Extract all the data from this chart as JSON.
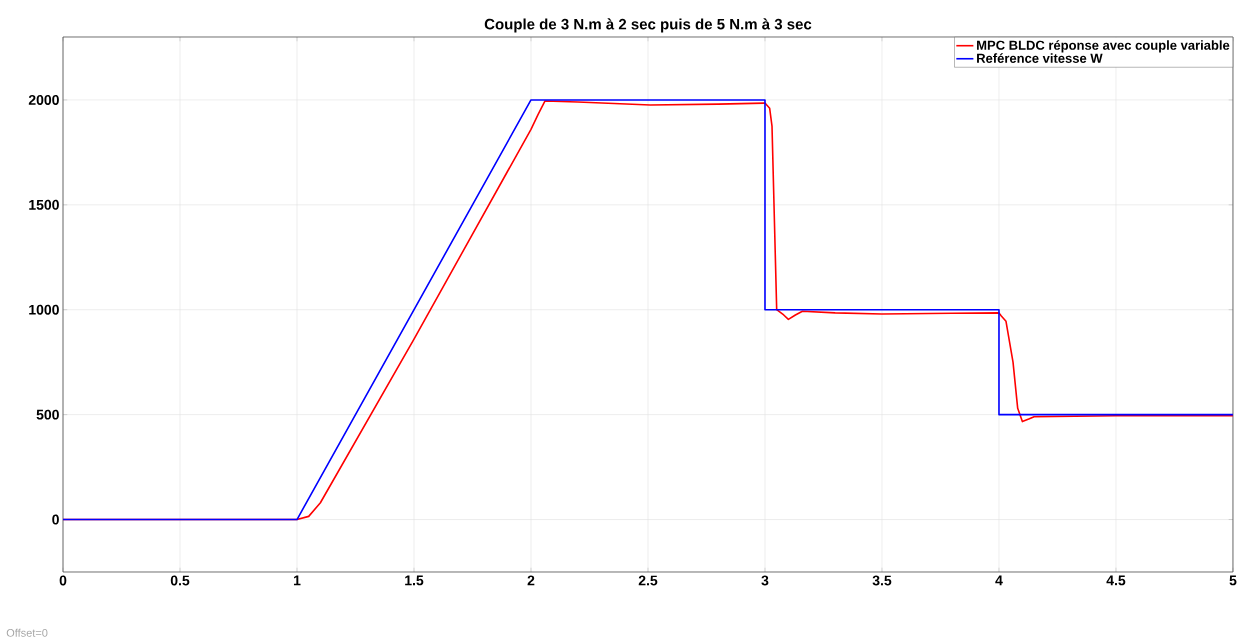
{
  "chart_data": {
    "type": "line",
    "title": "Couple de 3 N.m à 2 sec puis de 5 N.m à 3 sec",
    "xlim": [
      0,
      5
    ],
    "ylim": [
      -250,
      2300
    ],
    "xticks": [
      0,
      0.5,
      1,
      1.5,
      2,
      2.5,
      3,
      3.5,
      4,
      4.5,
      5
    ],
    "yticks": [
      0,
      500,
      1000,
      1500,
      2000
    ],
    "grid": true,
    "legend": "top right",
    "annotations": [
      "Offset=0"
    ],
    "series": [
      {
        "name": "MPC BLDC réponse avec couple variable",
        "color": "#ff0000",
        "x": [
          0,
          1.0,
          1.05,
          1.1,
          1.5,
          1.9,
          2.0,
          2.03,
          2.06,
          2.2,
          2.51,
          2.8,
          3.0,
          3.02,
          3.03,
          3.05,
          3.08,
          3.1,
          3.13,
          3.16,
          3.3,
          3.5,
          3.8,
          4.0,
          4.01,
          4.03,
          4.06,
          4.08,
          4.1,
          4.13,
          4.15,
          4.5,
          5
        ],
        "values": [
          0,
          0,
          15,
          80,
          860,
          1660,
          1860,
          1930,
          1995,
          1990,
          1976,
          1980,
          1985,
          1960,
          1875,
          1000,
          975,
          954,
          975,
          993,
          985,
          980,
          983,
          985,
          970,
          945,
          750,
          530,
          467,
          480,
          490,
          495,
          495
        ]
      },
      {
        "name": "Reférence vitesse W",
        "color": "#0000ff",
        "x": [
          0,
          1,
          2,
          3,
          3,
          4,
          4,
          5
        ],
        "values": [
          0,
          0,
          2000,
          2000,
          1000,
          1000,
          500,
          500
        ]
      }
    ]
  }
}
